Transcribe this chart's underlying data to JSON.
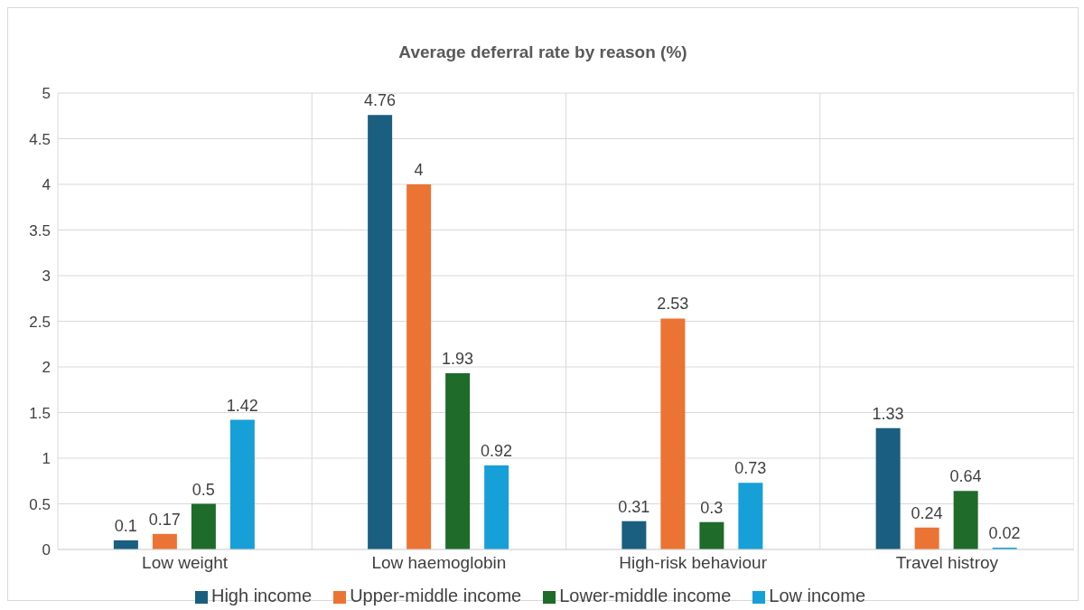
{
  "chart_data": {
    "type": "bar",
    "title": "Average deferral rate by reason  (%)",
    "categories": [
      "Low weight",
      "Low haemoglobin",
      "High-risk behaviour",
      "Travel histroy"
    ],
    "series": [
      {
        "name": "High income",
        "color": "#1a5e80",
        "values": [
          0.1,
          4.76,
          0.31,
          1.33
        ]
      },
      {
        "name": "Upper-middle income",
        "color": "#eb7434",
        "values": [
          0.17,
          4,
          2.53,
          0.24
        ]
      },
      {
        "name": "Lower-middle income",
        "color": "#1e6b2a",
        "values": [
          0.5,
          1.93,
          0.3,
          0.64
        ]
      },
      {
        "name": "Low income",
        "color": "#179fd8",
        "values": [
          1.42,
          0.92,
          0.73,
          0.02
        ]
      }
    ],
    "ylim": [
      0,
      5
    ],
    "yticks": [
      0,
      0.5,
      1,
      1.5,
      2,
      2.5,
      3,
      3.5,
      4,
      4.5,
      5
    ],
    "grid": true,
    "legend": "bottom",
    "data_labels": true
  }
}
